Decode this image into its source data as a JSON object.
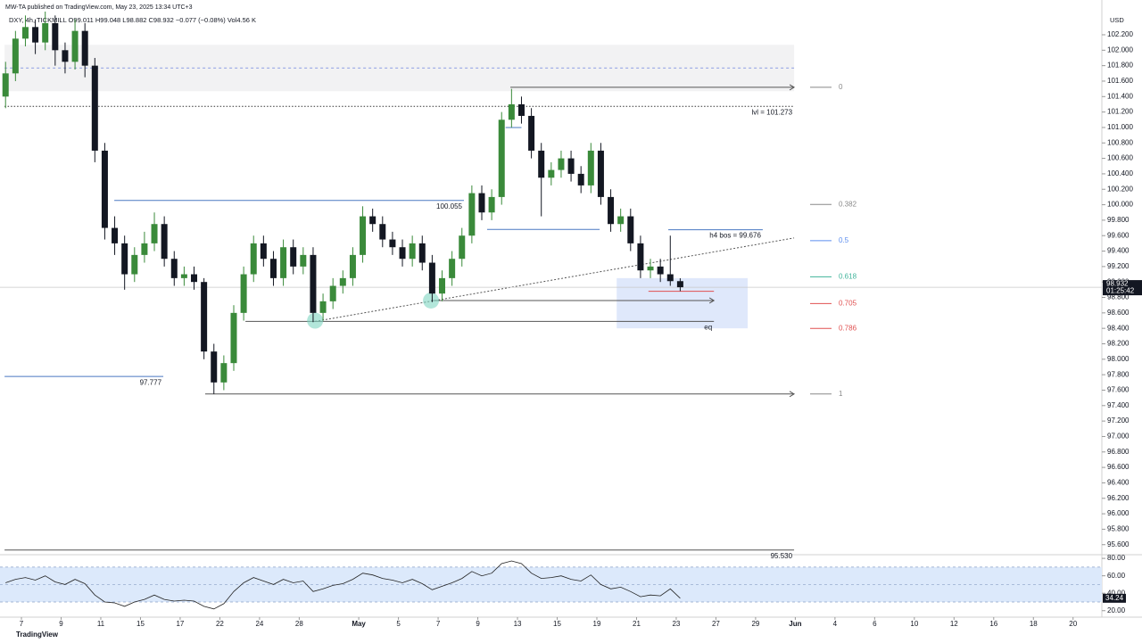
{
  "header": {
    "publisher": "MW-TA published on TradingView.com, May 23, 2025 13:34 UTC+3",
    "legend": "DXY, 4h, TICKMILL  O99.011 H99.048 L98.882 C98.932 −0.077 (−0.08%) Vol4.56 K",
    "logo": "TradingView"
  },
  "chart_data": {
    "type": "candlestick",
    "x": [
      -0.8,
      -0.3,
      0.2,
      0.7,
      1.2,
      1.7,
      2.2,
      2.7,
      3.2,
      3.7,
      4.2,
      4.7,
      5.2,
      5.7,
      6.2,
      6.7,
      7.2,
      7.7,
      8.2,
      8.7,
      9.2,
      9.7,
      10.2,
      10.7,
      11.2,
      11.7,
      12.2,
      12.7,
      13.2,
      13.7,
      14.2,
      14.7,
      15.2,
      15.7,
      16.2,
      16.7,
      17.2,
      17.7,
      18.2,
      18.7,
      19.2,
      19.7,
      20.2,
      20.7,
      21.2,
      21.7,
      22.2,
      22.7,
      23.2,
      23.7,
      24.2,
      24.7,
      25.2,
      25.7,
      26.2,
      26.7,
      27.2,
      27.7,
      28.2,
      28.7,
      29.2,
      29.7,
      30.2,
      30.7,
      31.2,
      31.7,
      32.2,
      32.7,
      33.2
    ],
    "open": [
      101.4,
      101.7,
      102.15,
      102.3,
      102.1,
      102.35,
      102.0,
      101.85,
      102.25,
      101.8,
      100.7,
      99.7,
      99.5,
      99.1,
      99.35,
      99.5,
      99.75,
      99.3,
      99.05,
      99.1,
      99.0,
      98.1,
      97.7,
      97.95,
      98.6,
      99.1,
      99.5,
      99.3,
      99.05,
      99.45,
      99.2,
      99.35,
      98.6,
      98.75,
      98.95,
      99.05,
      99.35,
      99.85,
      99.75,
      99.55,
      99.45,
      99.3,
      99.5,
      99.25,
      98.85,
      99.05,
      99.3,
      99.6,
      100.15,
      99.9,
      100.1,
      101.1,
      101.3,
      101.15,
      100.7,
      100.35,
      100.45,
      100.6,
      100.4,
      100.25,
      100.7,
      100.1,
      99.75,
      99.85,
      99.5,
      99.15,
      99.2,
      99.1,
      99.011
    ],
    "high": [
      101.85,
      102.25,
      102.45,
      102.4,
      102.5,
      102.45,
      102.1,
      102.4,
      102.35,
      101.9,
      100.8,
      99.85,
      99.6,
      99.45,
      99.65,
      99.9,
      99.85,
      99.4,
      99.2,
      99.2,
      99.05,
      98.2,
      98.05,
      98.7,
      99.2,
      99.6,
      99.6,
      99.4,
      99.55,
      99.55,
      99.45,
      99.45,
      98.85,
      99.05,
      99.15,
      99.45,
      99.98,
      99.95,
      99.85,
      99.65,
      99.55,
      99.6,
      99.6,
      99.35,
      99.15,
      99.4,
      99.7,
      100.25,
      100.25,
      100.2,
      101.2,
      101.5,
      101.4,
      101.25,
      100.8,
      100.55,
      100.7,
      100.7,
      100.5,
      100.8,
      100.8,
      100.2,
      99.95,
      99.95,
      99.6,
      99.3,
      99.3,
      99.6,
      99.048
    ],
    "low": [
      101.25,
      101.6,
      102.05,
      101.95,
      102.0,
      101.8,
      101.7,
      101.75,
      101.65,
      100.55,
      99.55,
      99.35,
      98.9,
      99.0,
      99.25,
      99.4,
      99.2,
      98.95,
      98.95,
      98.9,
      98.0,
      97.55,
      97.6,
      97.85,
      98.5,
      99.0,
      99.2,
      98.95,
      98.95,
      99.1,
      99.1,
      98.48,
      98.5,
      98.65,
      98.85,
      98.95,
      99.25,
      99.65,
      99.45,
      99.35,
      99.2,
      99.2,
      99.15,
      98.74,
      98.75,
      98.95,
      99.2,
      99.5,
      99.8,
      99.8,
      100.0,
      101.0,
      101.05,
      100.6,
      99.85,
      100.25,
      100.35,
      100.3,
      100.15,
      100.15,
      100.0,
      99.65,
      99.65,
      99.4,
      99.05,
      99.05,
      99.0,
      98.95,
      98.882
    ],
    "close": [
      101.7,
      102.15,
      102.3,
      102.1,
      102.35,
      102.0,
      101.85,
      102.25,
      101.8,
      100.7,
      99.7,
      99.5,
      99.1,
      99.35,
      99.5,
      99.75,
      99.3,
      99.05,
      99.1,
      99.0,
      98.1,
      97.7,
      97.95,
      98.6,
      99.1,
      99.5,
      99.3,
      99.05,
      99.45,
      99.2,
      99.35,
      98.6,
      98.75,
      98.95,
      99.05,
      99.35,
      99.85,
      99.75,
      99.55,
      99.45,
      99.3,
      99.5,
      99.25,
      98.85,
      99.05,
      99.3,
      99.6,
      100.15,
      99.9,
      100.1,
      101.1,
      101.3,
      101.15,
      100.7,
      100.35,
      100.45,
      100.6,
      100.4,
      100.25,
      100.7,
      100.1,
      99.75,
      99.85,
      99.5,
      99.15,
      99.2,
      99.1,
      99.011,
      98.932
    ],
    "up_color": "#3a8a3a",
    "down_color": "#131722",
    "countdown": "01:25:42",
    "y_axis_label": "USD",
    "xlim": [
      -1.08,
      54.45
    ],
    "ylim": [
      95.47,
      102.65
    ],
    "yticks": [
      {
        "value": 95.6,
        "label": "95.600"
      },
      {
        "value": 95.8,
        "label": "95.800"
      },
      {
        "value": 96.0,
        "label": "96.000"
      },
      {
        "value": 96.2,
        "label": "96.200"
      },
      {
        "value": 96.4,
        "label": "96.400"
      },
      {
        "value": 96.6,
        "label": "96.600"
      },
      {
        "value": 96.8,
        "label": "96.800"
      },
      {
        "value": 97.0,
        "label": "97.000"
      },
      {
        "value": 97.2,
        "label": "97.200"
      },
      {
        "value": 97.4,
        "label": "97.400"
      },
      {
        "value": 97.6,
        "label": "97.600"
      },
      {
        "value": 97.8,
        "label": "97.800"
      },
      {
        "value": 98.0,
        "label": "98.000"
      },
      {
        "value": 98.2,
        "label": "98.200"
      },
      {
        "value": 98.4,
        "label": "98.400"
      },
      {
        "value": 98.6,
        "label": "98.600"
      },
      {
        "value": 98.8,
        "label": "98.800"
      },
      {
        "value": 99.0,
        "label": "99.000"
      },
      {
        "value": 99.2,
        "label": "99.200"
      },
      {
        "value": 99.4,
        "label": "99.400"
      },
      {
        "value": 99.6,
        "label": "99.600"
      },
      {
        "value": 99.8,
        "label": "99.800"
      },
      {
        "value": 100.0,
        "label": "100.000"
      },
      {
        "value": 100.2,
        "label": "100.200"
      },
      {
        "value": 100.4,
        "label": "100.400"
      },
      {
        "value": 100.6,
        "label": "100.600"
      },
      {
        "value": 100.8,
        "label": "100.800"
      },
      {
        "value": 101.0,
        "label": "101.000"
      },
      {
        "value": 101.2,
        "label": "101.200"
      },
      {
        "value": 101.4,
        "label": "101.400"
      },
      {
        "value": 101.6,
        "label": "101.600"
      },
      {
        "value": 101.8,
        "label": "101.800"
      },
      {
        "value": 102.0,
        "label": "102.000"
      },
      {
        "value": 102.2,
        "label": "102.200"
      }
    ],
    "xticks": [
      {
        "value": 0,
        "label": "7"
      },
      {
        "value": 2,
        "label": "9"
      },
      {
        "value": 4,
        "label": "11"
      },
      {
        "value": 6,
        "label": "15"
      },
      {
        "value": 8,
        "label": "17"
      },
      {
        "value": 10,
        "label": "22"
      },
      {
        "value": 12,
        "label": "24"
      },
      {
        "value": 14,
        "label": "28"
      },
      {
        "value": 17,
        "label": "May"
      },
      {
        "value": 19,
        "label": "5"
      },
      {
        "value": 21,
        "label": "7"
      },
      {
        "value": 23,
        "label": "9"
      },
      {
        "value": 25,
        "label": "13"
      },
      {
        "value": 27,
        "label": "15"
      },
      {
        "value": 29,
        "label": "19"
      },
      {
        "value": 31,
        "label": "21"
      },
      {
        "value": 33,
        "label": "23"
      },
      {
        "value": 35,
        "label": "27"
      },
      {
        "value": 37,
        "label": "29"
      },
      {
        "value": 39,
        "label": "Jun"
      },
      {
        "value": 41,
        "label": "4"
      },
      {
        "value": 43,
        "label": "6"
      },
      {
        "value": 45,
        "label": "10"
      },
      {
        "value": 47,
        "label": "12"
      },
      {
        "value": 49,
        "label": "16"
      },
      {
        "value": 51,
        "label": "18"
      },
      {
        "value": 53,
        "label": "20"
      }
    ],
    "zones": [
      {
        "top": 102.07,
        "bottom": 101.47,
        "from": -0.85,
        "to": 38.94,
        "color": "#f2f2f3"
      },
      {
        "top": 99.05,
        "bottom": 98.4,
        "from": 30.0,
        "to": 36.6,
        "color": "#dfe8fb"
      }
    ],
    "lines": [
      {
        "value": 101.77,
        "from": -0.85,
        "to": 38.94,
        "color": "#8c9de3",
        "style": "dashed"
      },
      {
        "value": 101.273,
        "from": -0.85,
        "to": 38.94,
        "color": "#333333",
        "style": "dotted",
        "label": "lvl = 101.273"
      },
      {
        "value": 100.055,
        "from": 4.68,
        "to": 22.3,
        "color": "#4a78c2",
        "style": "solid",
        "label": "100.055"
      },
      {
        "value": 97.777,
        "from": -0.85,
        "to": 7.15,
        "color": "#4a78c2",
        "style": "solid",
        "label": "97.777"
      },
      {
        "value": 99.676,
        "from": 32.6,
        "to": 37.36,
        "color": "#4a78c2",
        "style": "solid",
        "label": "h4 bos = 99.676"
      },
      {
        "value": 95.53,
        "from": -0.85,
        "to": 38.94,
        "color": "#555555",
        "style": "solid",
        "label": "95.530"
      },
      {
        "value": 101.52,
        "from": 24.64,
        "to": 38.94,
        "color": "#555555",
        "style": "solid",
        "arrow": true
      },
      {
        "value": 97.55,
        "from": 9.26,
        "to": 38.94,
        "color": "#555555",
        "style": "solid",
        "arrow": true
      },
      {
        "value": 98.76,
        "from": 20.64,
        "to": 34.9,
        "color": "#555555",
        "style": "solid",
        "arrow": true
      },
      {
        "value": 98.49,
        "from": 11.29,
        "to": 34.9,
        "color": "#555555",
        "style": "solid",
        "label": "eq"
      },
      {
        "value": 98.88,
        "from": 31.6,
        "to": 34.9,
        "color": "#e05050",
        "style": "solid"
      },
      {
        "value": 99.68,
        "from": 23.47,
        "to": 29.14,
        "color": "#4a78c2",
        "style": "solid"
      },
      {
        "value": 101.0,
        "from": 24.4,
        "to": 25.2,
        "color": "#4a78c2",
        "style": "solid"
      }
    ],
    "trendline": {
      "from": [
        14.8,
        98.49
      ],
      "to": [
        38.94,
        99.57
      ],
      "color": "#555555"
    },
    "markers": [
      [
        14.8,
        98.5
      ],
      [
        20.64,
        98.76
      ]
    ],
    "fib": {
      "p0": 101.52,
      "p1": 97.55,
      "levels": [
        0,
        0.382,
        0.5,
        0.618,
        0.705,
        0.786,
        1
      ],
      "colors": [
        "#888888",
        "#888888",
        "#5b8def",
        "#3fb39a",
        "#e05050",
        "#e05050",
        "#888888"
      ]
    },
    "rsi": {
      "values": [
        52,
        56,
        58,
        55,
        60,
        53,
        50,
        56,
        51,
        38,
        30,
        29,
        25,
        30,
        33,
        38,
        33,
        31,
        32,
        31,
        25,
        22,
        28,
        42,
        52,
        58,
        54,
        50,
        56,
        52,
        54,
        42,
        45,
        49,
        51,
        56,
        63,
        61,
        57,
        55,
        52,
        56,
        51,
        44,
        48,
        52,
        57,
        65,
        60,
        63,
        74,
        77,
        74,
        63,
        57,
        58,
        60,
        56,
        54,
        61,
        50,
        45,
        47,
        42,
        36,
        38,
        37,
        45,
        34.24
      ],
      "ylim": [
        12.6,
        84.2
      ],
      "yticks": [
        {
          "value": 80,
          "label": "80.00"
        },
        {
          "value": 60,
          "label": "60.00"
        },
        {
          "value": 40,
          "label": "40.00"
        },
        {
          "value": 20,
          "label": "20.00"
        }
      ],
      "band": [
        30,
        70
      ],
      "mid": 50,
      "color": "#222222"
    }
  }
}
